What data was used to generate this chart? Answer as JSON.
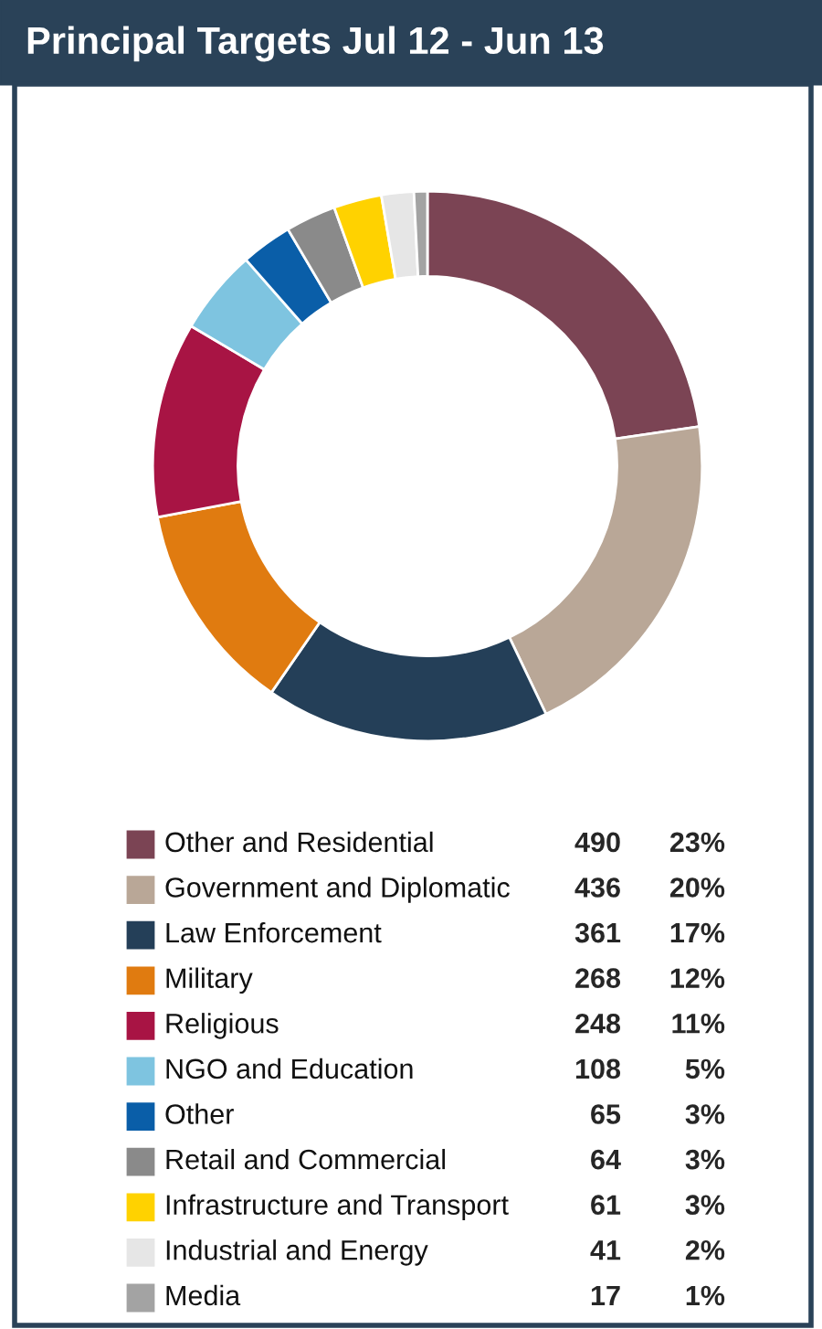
{
  "chart_data": {
    "type": "donut",
    "title": "Principal Targets Jul 12 - Jun 13",
    "categories": [
      "Other and Residential",
      "Government and Diplomatic",
      "Law Enforcement",
      "Military",
      "Religious",
      "NGO and Education",
      "Other",
      "Retail and Commercial",
      "Infrastructure and Transport",
      "Industrial and Energy",
      "Media"
    ],
    "values": [
      490,
      436,
      361,
      268,
      248,
      108,
      65,
      64,
      61,
      41,
      17
    ],
    "colors": [
      "#7b4454",
      "#b9a797",
      "#243f58",
      "#e07b10",
      "#a81444",
      "#7ec4e0",
      "#0a5ea8",
      "#8a8a8a",
      "#ffd200",
      "#e6e6e6",
      "#a3a3a3"
    ],
    "data_labels": true,
    "annotations": [
      "23%",
      "20%",
      "17%",
      "12%",
      "11%",
      "5%",
      "3%",
      "3%",
      "3%",
      "2%",
      "1%"
    ],
    "legend": "bottom"
  }
}
